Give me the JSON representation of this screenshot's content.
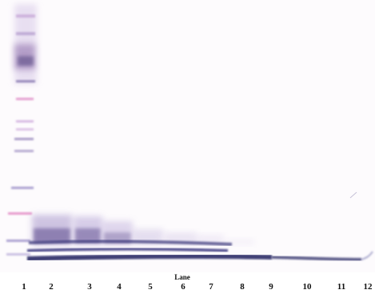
{
  "axis": {
    "title": "Lane"
  },
  "lanes": [
    "1",
    "2",
    "3",
    "4",
    "5",
    "6",
    "7",
    "8",
    "9",
    "10",
    "11",
    "12"
  ],
  "colors": {
    "band": "#2c2a66",
    "smear": "#6e5e9c",
    "ladder": "#d08fc0"
  }
}
